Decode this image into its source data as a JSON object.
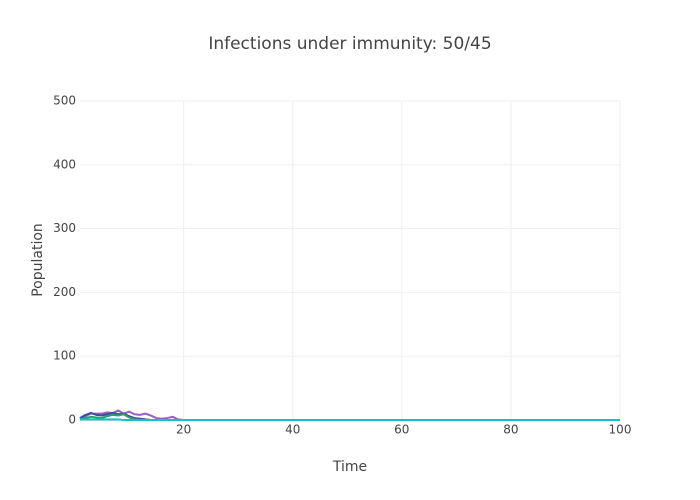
{
  "chart_data": {
    "type": "line",
    "title": "Infections under immunity: 50/45",
    "x_label": "Time",
    "y_label": "Population",
    "x": [
      1,
      2,
      3,
      4,
      5,
      6,
      7,
      8,
      9,
      10,
      11,
      12,
      13,
      14,
      15,
      16,
      17,
      18,
      19,
      20,
      100
    ],
    "series": [
      {
        "color": "#9c5fc4",
        "values": [
          2,
          6,
          10,
          10,
          10,
          12,
          11,
          15,
          10,
          13,
          9,
          8,
          10,
          7,
          3,
          2,
          3,
          5,
          1,
          0,
          0
        ]
      },
      {
        "color": "#3a4fa0",
        "values": [
          3,
          8,
          11,
          8,
          7,
          9,
          11,
          9,
          10,
          6,
          3,
          2,
          1,
          0,
          0,
          0,
          0,
          0,
          0,
          0,
          0
        ]
      },
      {
        "color": "#2ca25f",
        "values": [
          1,
          3,
          5,
          4,
          3,
          6,
          8,
          7,
          9,
          4,
          1,
          0,
          0,
          0,
          0,
          0,
          0,
          0,
          0,
          0,
          0
        ]
      },
      {
        "color": "#17becf",
        "values": [
          1,
          1,
          1,
          1,
          1,
          1,
          1,
          1,
          0,
          0,
          0,
          0,
          0,
          0,
          0,
          0,
          0,
          0,
          0,
          0,
          0
        ]
      }
    ],
    "xlim": [
      1,
      100
    ],
    "xticks": [
      20,
      40,
      60,
      80,
      100
    ],
    "ylim": [
      0,
      500
    ],
    "yticks": [
      0,
      100,
      200,
      300,
      400,
      500
    ],
    "grid": true
  }
}
